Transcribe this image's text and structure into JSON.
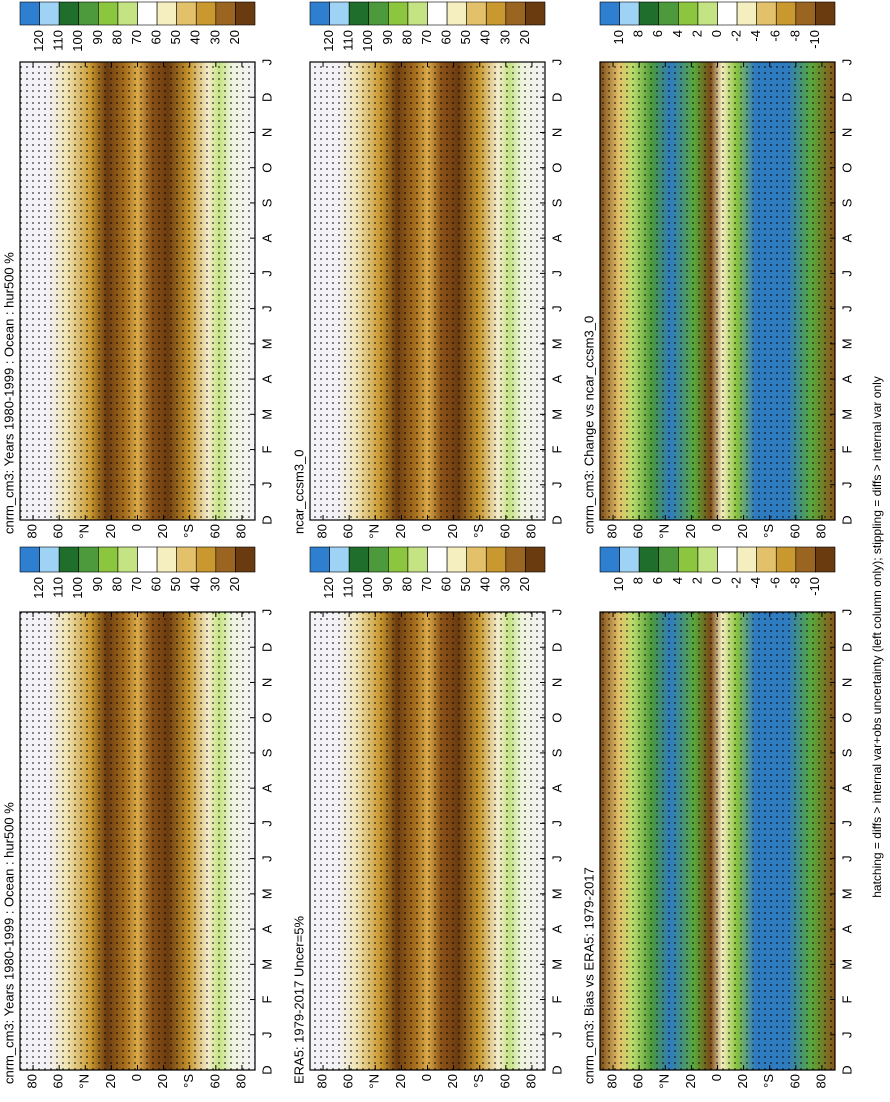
{
  "footnote": "hatching = diffs > internal var+obs uncertainty (left column only); stippling = diffs > internal var only",
  "chart_data": [
    {
      "type": "contour",
      "title": "cnrm_cm3: Years 1980-1999 : Ocean : hur500 %",
      "categories": [
        "D",
        "J",
        "F",
        "M",
        "A",
        "M",
        "J",
        "J",
        "A",
        "S",
        "O",
        "N",
        "D",
        "J"
      ],
      "ylim": [
        -90,
        90
      ],
      "yticks": [
        80,
        60,
        {
          "value": 40,
          "label": "°N"
        },
        20,
        0,
        {
          "value": -20,
          "label": "20"
        },
        {
          "value": -40,
          "label": "°S"
        },
        {
          "value": -60,
          "label": "60"
        },
        {
          "value": -80,
          "label": "80"
        }
      ],
      "colorbar_ticks": [
        120,
        110,
        100,
        90,
        80,
        70,
        60,
        50,
        40,
        30,
        20
      ],
      "colorbar_colors": [
        "#2e7fd0",
        "#9fd3f5",
        "#1f6e2c",
        "#4d9a3c",
        "#8cc63e",
        "#c4e382",
        "#ffffff",
        "#f5eebf",
        "#e3c06a",
        "#c9982f",
        "#9a6520",
        "#6b3b10"
      ]
    },
    {
      "type": "contour",
      "title": "cnrm_cm3: Years 1980-1999 : Ocean : hur500 %",
      "categories": [
        "D",
        "J",
        "F",
        "M",
        "A",
        "M",
        "J",
        "J",
        "A",
        "S",
        "O",
        "N",
        "D",
        "J"
      ],
      "ylim": [
        -90,
        90
      ],
      "yticks": [
        80,
        60,
        {
          "value": 40,
          "label": "°N"
        },
        20,
        0,
        {
          "value": -20,
          "label": "20"
        },
        {
          "value": -40,
          "label": "°S"
        },
        {
          "value": -60,
          "label": "60"
        },
        {
          "value": -80,
          "label": "80"
        }
      ],
      "colorbar_ticks": [
        120,
        110,
        100,
        90,
        80,
        70,
        60,
        50,
        40,
        30,
        20
      ],
      "colorbar_colors": [
        "#2e7fd0",
        "#9fd3f5",
        "#1f6e2c",
        "#4d9a3c",
        "#8cc63e",
        "#c4e382",
        "#ffffff",
        "#f5eebf",
        "#e3c06a",
        "#c9982f",
        "#9a6520",
        "#6b3b10"
      ]
    },
    {
      "type": "contour",
      "title": "ERA5: 1979-2017 Uncer=5%",
      "categories": [
        "D",
        "J",
        "F",
        "M",
        "A",
        "M",
        "J",
        "J",
        "A",
        "S",
        "O",
        "N",
        "D",
        "J"
      ],
      "ylim": [
        -90,
        90
      ],
      "yticks": [
        80,
        60,
        {
          "value": 40,
          "label": "°N"
        },
        20,
        0,
        {
          "value": -20,
          "label": "20"
        },
        {
          "value": -40,
          "label": "°S"
        },
        {
          "value": -60,
          "label": "60"
        },
        {
          "value": -80,
          "label": "80"
        }
      ],
      "colorbar_ticks": [
        120,
        110,
        100,
        90,
        80,
        70,
        60,
        50,
        40,
        30,
        20
      ],
      "colorbar_colors": [
        "#2e7fd0",
        "#9fd3f5",
        "#1f6e2c",
        "#4d9a3c",
        "#8cc63e",
        "#c4e382",
        "#ffffff",
        "#f5eebf",
        "#e3c06a",
        "#c9982f",
        "#9a6520",
        "#6b3b10"
      ]
    },
    {
      "type": "contour",
      "title": "ncar_ccsm3_0",
      "categories": [
        "D",
        "J",
        "F",
        "M",
        "A",
        "M",
        "J",
        "J",
        "A",
        "S",
        "O",
        "N",
        "D",
        "J"
      ],
      "ylim": [
        -90,
        90
      ],
      "yticks": [
        80,
        60,
        {
          "value": 40,
          "label": "°N"
        },
        20,
        0,
        {
          "value": -20,
          "label": "20"
        },
        {
          "value": -40,
          "label": "°S"
        },
        {
          "value": -60,
          "label": "60"
        },
        {
          "value": -80,
          "label": "80"
        }
      ],
      "colorbar_ticks": [
        120,
        110,
        100,
        90,
        80,
        70,
        60,
        50,
        40,
        30,
        20
      ],
      "colorbar_colors": [
        "#2e7fd0",
        "#9fd3f5",
        "#1f6e2c",
        "#4d9a3c",
        "#8cc63e",
        "#c4e382",
        "#ffffff",
        "#f5eebf",
        "#e3c06a",
        "#c9982f",
        "#9a6520",
        "#6b3b10"
      ]
    },
    {
      "type": "contour",
      "title": "cnrm_cm3: Bias vs ERA5: 1979-2017",
      "categories": [
        "D",
        "J",
        "F",
        "M",
        "A",
        "M",
        "J",
        "J",
        "A",
        "S",
        "O",
        "N",
        "D",
        "J"
      ],
      "ylim": [
        -90,
        90
      ],
      "yticks": [
        80,
        60,
        {
          "value": 40,
          "label": "°N"
        },
        20,
        0,
        {
          "value": -20,
          "label": "20"
        },
        {
          "value": -40,
          "label": "°S"
        },
        {
          "value": -60,
          "label": "60"
        },
        {
          "value": -80,
          "label": "80"
        }
      ],
      "colorbar_ticks": [
        10,
        8,
        6,
        4,
        2,
        0,
        -2,
        -4,
        -6,
        -8,
        -10
      ],
      "colorbar_colors": [
        "#2e7fd0",
        "#9fd3f5",
        "#1f6e2c",
        "#4d9a3c",
        "#8cc63e",
        "#c4e382",
        "#ffffff",
        "#f5eebf",
        "#e3c06a",
        "#c9982f",
        "#9a6520",
        "#6b3b10"
      ]
    },
    {
      "type": "contour",
      "title": "cnrm_cm3: Change vs ncar_ccsm3_0",
      "categories": [
        "D",
        "J",
        "F",
        "M",
        "A",
        "M",
        "J",
        "J",
        "A",
        "S",
        "O",
        "N",
        "D",
        "J"
      ],
      "ylim": [
        -90,
        90
      ],
      "yticks": [
        80,
        60,
        {
          "value": 40,
          "label": "°N"
        },
        20,
        0,
        {
          "value": -20,
          "label": "20"
        },
        {
          "value": -40,
          "label": "°S"
        },
        {
          "value": -60,
          "label": "60"
        },
        {
          "value": -80,
          "label": "80"
        }
      ],
      "colorbar_ticks": [
        10,
        8,
        6,
        4,
        2,
        0,
        -2,
        -4,
        -6,
        -8,
        -10
      ],
      "colorbar_colors": [
        "#2e7fd0",
        "#9fd3f5",
        "#1f6e2c",
        "#4d9a3c",
        "#8cc63e",
        "#c4e382",
        "#ffffff",
        "#f5eebf",
        "#e3c06a",
        "#c9982f",
        "#9a6520",
        "#6b3b10"
      ]
    }
  ]
}
